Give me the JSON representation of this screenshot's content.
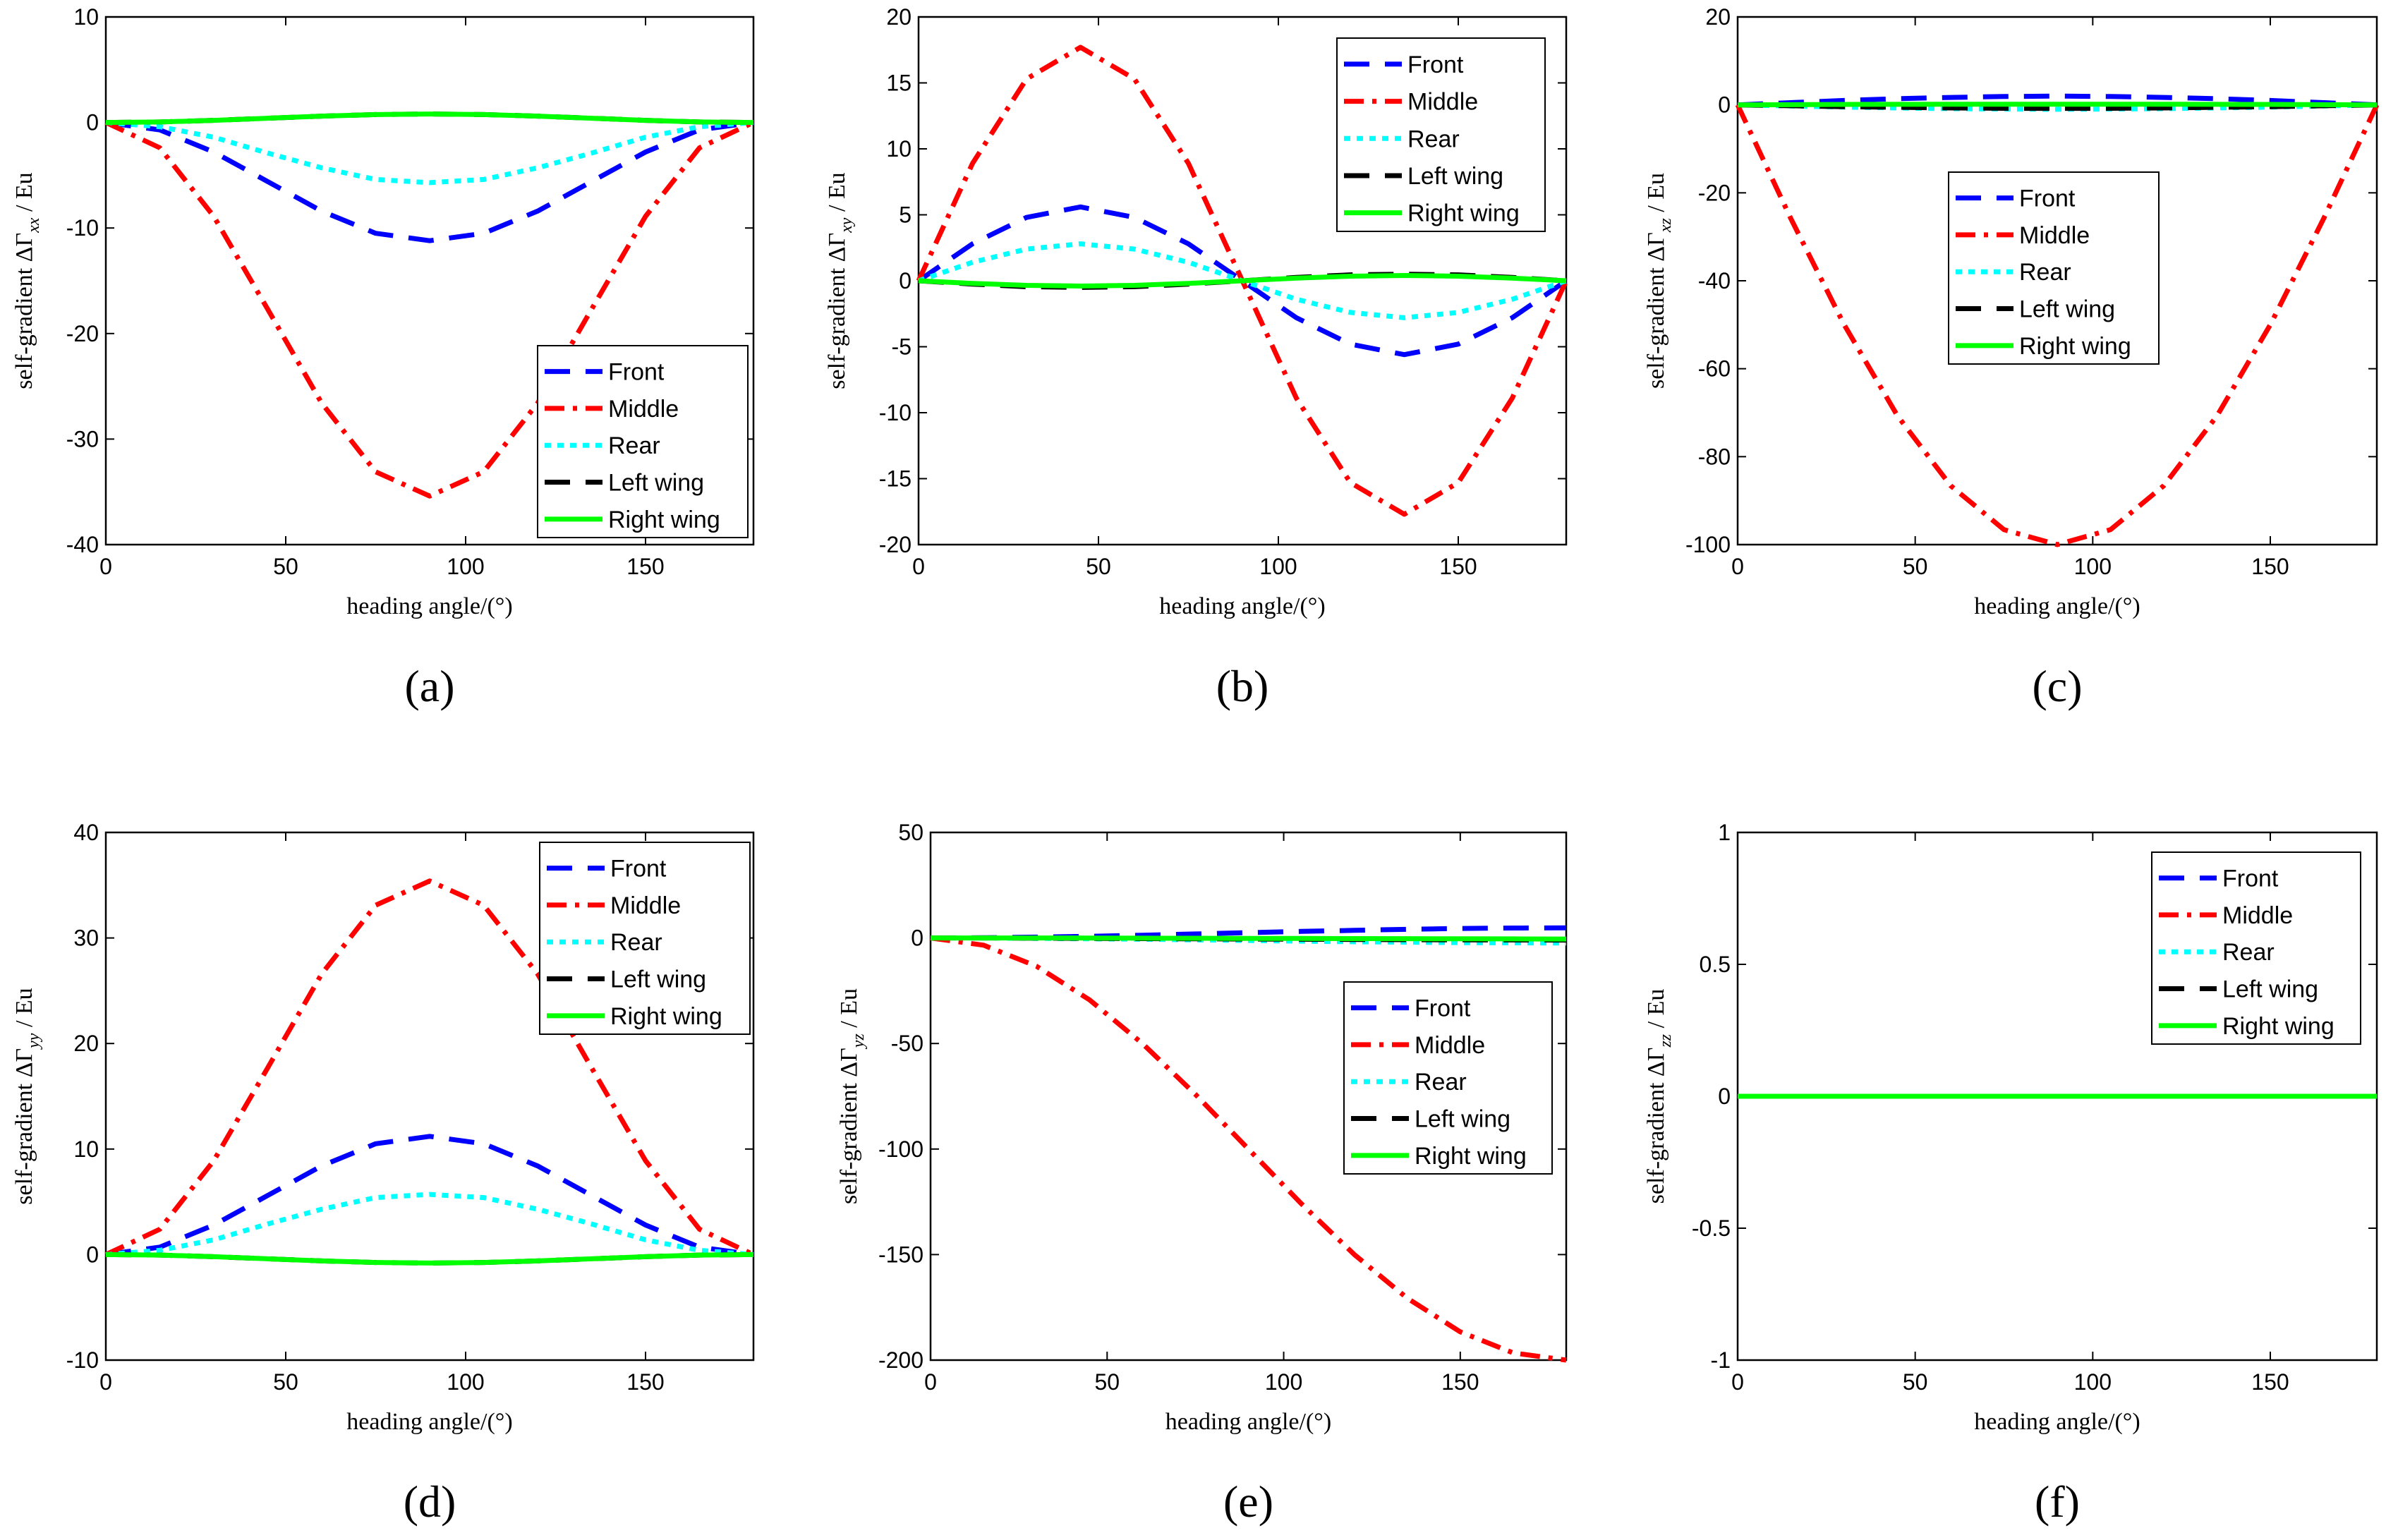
{
  "legend_entries": [
    "Front",
    "Middle",
    "Rear",
    "Left wing",
    "Right wing"
  ],
  "series_styles": {
    "Front": {
      "color": "#0000FF",
      "dash": "dash"
    },
    "Middle": {
      "color": "#FF0000",
      "dash": "dashdot"
    },
    "Rear": {
      "color": "#00FFFF",
      "dash": "dot"
    },
    "Left wing": {
      "color": "#000000",
      "dash": "dash"
    },
    "Right wing": {
      "color": "#00FF00",
      "dash": "solid"
    }
  },
  "chart_data": [
    {
      "panel_label": "(a)",
      "type": "line",
      "title": "",
      "xlabel": "heading angle/(°)",
      "ylabel_prefix": "self-gradient  ΔΓ",
      "ylabel_subscript": "xx",
      "ylabel_suffix": " / Eu",
      "xlim": [
        0,
        180
      ],
      "ylim": [
        -40,
        10
      ],
      "xticks": [
        0,
        50,
        100,
        150
      ],
      "yticks": [
        -40,
        -30,
        -20,
        -10,
        0,
        10
      ],
      "legend_position": "bottom-right",
      "series": [
        {
          "name": "Front",
          "x": [
            0,
            15,
            30,
            45,
            60,
            75,
            90,
            105,
            120,
            135,
            150,
            165,
            180
          ],
          "values": [
            0,
            -0.7,
            -2.8,
            -5.6,
            -8.4,
            -10.5,
            -11.2,
            -10.5,
            -8.4,
            -5.6,
            -2.8,
            -0.7,
            0
          ]
        },
        {
          "name": "Middle",
          "x": [
            0,
            15,
            30,
            45,
            60,
            75,
            90,
            105,
            120,
            135,
            150,
            165,
            180
          ],
          "values": [
            0,
            -2.4,
            -8.9,
            -17.7,
            -26.6,
            -33.1,
            -35.4,
            -33.1,
            -26.6,
            -17.7,
            -8.9,
            -2.4,
            0
          ]
        },
        {
          "name": "Rear",
          "x": [
            0,
            15,
            30,
            45,
            60,
            75,
            90,
            105,
            120,
            135,
            150,
            165,
            180
          ],
          "values": [
            0,
            -0.4,
            -1.4,
            -2.9,
            -4.3,
            -5.4,
            -5.7,
            -5.4,
            -4.3,
            -2.9,
            -1.4,
            -0.4,
            0
          ]
        },
        {
          "name": "Left wing",
          "x": [
            0,
            15,
            30,
            45,
            60,
            75,
            90,
            105,
            120,
            135,
            150,
            165,
            180
          ],
          "values": [
            0,
            0.05,
            0.2,
            0.4,
            0.6,
            0.75,
            0.8,
            0.75,
            0.6,
            0.4,
            0.2,
            0.05,
            0
          ]
        },
        {
          "name": "Right wing",
          "x": [
            0,
            15,
            30,
            45,
            60,
            75,
            90,
            105,
            120,
            135,
            150,
            165,
            180
          ],
          "values": [
            0,
            0.05,
            0.2,
            0.4,
            0.6,
            0.75,
            0.8,
            0.75,
            0.6,
            0.4,
            0.2,
            0.05,
            0
          ]
        }
      ]
    },
    {
      "panel_label": "(b)",
      "type": "line",
      "title": "",
      "xlabel": "heading angle/(°)",
      "ylabel_prefix": "self-gradient  ΔΓ",
      "ylabel_subscript": "xy",
      "ylabel_suffix": " / Eu",
      "xlim": [
        0,
        180
      ],
      "ylim": [
        -20,
        20
      ],
      "xticks": [
        0,
        50,
        100,
        150
      ],
      "yticks": [
        -20,
        -15,
        -10,
        -5,
        0,
        5,
        10,
        15,
        20
      ],
      "legend_position": "top-right",
      "series": [
        {
          "name": "Front",
          "x": [
            0,
            15,
            30,
            45,
            60,
            75,
            90,
            105,
            120,
            135,
            150,
            165,
            180
          ],
          "values": [
            0,
            2.8,
            4.8,
            5.6,
            4.8,
            2.8,
            0,
            -2.8,
            -4.8,
            -5.6,
            -4.8,
            -2.8,
            0
          ]
        },
        {
          "name": "Middle",
          "x": [
            0,
            15,
            30,
            45,
            60,
            75,
            90,
            105,
            120,
            135,
            150,
            165,
            180
          ],
          "values": [
            0,
            8.9,
            15.3,
            17.7,
            15.3,
            8.9,
            0,
            -8.9,
            -15.3,
            -17.7,
            -15.3,
            -8.9,
            0
          ]
        },
        {
          "name": "Rear",
          "x": [
            0,
            15,
            30,
            45,
            60,
            75,
            90,
            105,
            120,
            135,
            150,
            165,
            180
          ],
          "values": [
            0,
            1.4,
            2.4,
            2.8,
            2.4,
            1.4,
            0,
            -1.4,
            -2.4,
            -2.8,
            -2.4,
            -1.4,
            0
          ]
        },
        {
          "name": "Left wing",
          "x": [
            0,
            15,
            30,
            45,
            60,
            75,
            90,
            105,
            120,
            135,
            150,
            165,
            180
          ],
          "values": [
            0,
            -0.25,
            -0.45,
            -0.5,
            -0.45,
            -0.25,
            0,
            0.25,
            0.45,
            0.5,
            0.45,
            0.25,
            0
          ]
        },
        {
          "name": "Right wing",
          "x": [
            0,
            15,
            30,
            45,
            60,
            75,
            90,
            105,
            120,
            135,
            150,
            165,
            180
          ],
          "values": [
            0,
            -0.2,
            -0.35,
            -0.4,
            -0.35,
            -0.2,
            0,
            0.2,
            0.35,
            0.4,
            0.35,
            0.2,
            0
          ]
        }
      ]
    },
    {
      "panel_label": "(c)",
      "type": "line",
      "title": "",
      "xlabel": "heading angle/(°)",
      "ylabel_prefix": "self-gradient  ΔΓ",
      "ylabel_subscript": "xz",
      "ylabel_suffix": " / Eu",
      "xlim": [
        0,
        180
      ],
      "ylim": [
        -100,
        20
      ],
      "xticks": [
        0,
        50,
        100,
        150
      ],
      "yticks": [
        -100,
        -80,
        -60,
        -40,
        -20,
        0,
        20
      ],
      "legend_position": "top-center",
      "series": [
        {
          "name": "Front",
          "x": [
            0,
            15,
            30,
            45,
            60,
            75,
            90,
            105,
            120,
            135,
            150,
            165,
            180
          ],
          "values": [
            0,
            0.5,
            1.0,
            1.4,
            1.7,
            1.9,
            2.0,
            1.9,
            1.7,
            1.4,
            1.0,
            0.5,
            0
          ]
        },
        {
          "name": "Middle",
          "x": [
            0,
            15,
            30,
            45,
            60,
            75,
            90,
            105,
            120,
            135,
            150,
            165,
            180
          ],
          "values": [
            0,
            -25.9,
            -50.0,
            -70.7,
            -86.6,
            -96.6,
            -100,
            -96.6,
            -86.6,
            -70.7,
            -50.0,
            -25.9,
            0
          ]
        },
        {
          "name": "Rear",
          "x": [
            0,
            15,
            30,
            45,
            60,
            75,
            90,
            105,
            120,
            135,
            150,
            165,
            180
          ],
          "values": [
            0,
            -0.25,
            -0.5,
            -0.7,
            -0.85,
            -0.95,
            -1.0,
            -0.95,
            -0.85,
            -0.7,
            -0.5,
            -0.25,
            0
          ]
        },
        {
          "name": "Left wing",
          "x": [
            0,
            15,
            30,
            45,
            60,
            75,
            90,
            105,
            120,
            135,
            150,
            165,
            180
          ],
          "values": [
            0,
            -0.2,
            -0.4,
            -0.55,
            -0.7,
            -0.78,
            -0.8,
            -0.78,
            -0.7,
            -0.55,
            -0.4,
            -0.2,
            0
          ]
        },
        {
          "name": "Right wing",
          "x": [
            0,
            15,
            30,
            45,
            60,
            75,
            90,
            105,
            120,
            135,
            150,
            165,
            180
          ],
          "values": [
            0,
            0.05,
            0.1,
            0.12,
            0.14,
            0.15,
            0.15,
            0.15,
            0.14,
            0.12,
            0.1,
            0.05,
            0
          ]
        }
      ]
    },
    {
      "panel_label": "(d)",
      "type": "line",
      "title": "",
      "xlabel": "heading angle/(°)",
      "ylabel_prefix": "self-gradient  ΔΓ",
      "ylabel_subscript": "yy",
      "ylabel_suffix": " / Eu",
      "xlim": [
        0,
        180
      ],
      "ylim": [
        -10,
        40
      ],
      "xticks": [
        0,
        50,
        100,
        150
      ],
      "yticks": [
        -10,
        0,
        10,
        20,
        30,
        40
      ],
      "legend_position": "top-right",
      "series": [
        {
          "name": "Front",
          "x": [
            0,
            15,
            30,
            45,
            60,
            75,
            90,
            105,
            120,
            135,
            150,
            165,
            180
          ],
          "values": [
            0,
            0.7,
            2.8,
            5.6,
            8.4,
            10.5,
            11.2,
            10.5,
            8.4,
            5.6,
            2.8,
            0.7,
            0
          ]
        },
        {
          "name": "Middle",
          "x": [
            0,
            15,
            30,
            45,
            60,
            75,
            90,
            105,
            120,
            135,
            150,
            165,
            180
          ],
          "values": [
            0,
            2.4,
            8.9,
            17.7,
            26.6,
            33.1,
            35.4,
            33.1,
            26.6,
            17.7,
            8.9,
            2.4,
            0
          ]
        },
        {
          "name": "Rear",
          "x": [
            0,
            15,
            30,
            45,
            60,
            75,
            90,
            105,
            120,
            135,
            150,
            165,
            180
          ],
          "values": [
            0,
            0.4,
            1.4,
            2.9,
            4.3,
            5.4,
            5.7,
            5.4,
            4.3,
            2.9,
            1.4,
            0.4,
            0
          ]
        },
        {
          "name": "Left wing",
          "x": [
            0,
            15,
            30,
            45,
            60,
            75,
            90,
            105,
            120,
            135,
            150,
            165,
            180
          ],
          "values": [
            0,
            -0.05,
            -0.2,
            -0.4,
            -0.6,
            -0.75,
            -0.8,
            -0.75,
            -0.6,
            -0.4,
            -0.2,
            -0.05,
            0
          ]
        },
        {
          "name": "Right wing",
          "x": [
            0,
            15,
            30,
            45,
            60,
            75,
            90,
            105,
            120,
            135,
            150,
            165,
            180
          ],
          "values": [
            0,
            -0.05,
            -0.2,
            -0.4,
            -0.6,
            -0.75,
            -0.8,
            -0.75,
            -0.6,
            -0.4,
            -0.2,
            -0.05,
            0
          ]
        }
      ]
    },
    {
      "panel_label": "(e)",
      "type": "line",
      "title": "",
      "xlabel": "heading angle/(°)",
      "ylabel_prefix": "self-gradient  ΔΓ",
      "ylabel_subscript": "yz",
      "ylabel_suffix": " / Eu",
      "xlim": [
        0,
        180
      ],
      "ylim": [
        -200,
        50
      ],
      "xticks": [
        0,
        50,
        100,
        150
      ],
      "yticks": [
        -200,
        -150,
        -100,
        -50,
        0,
        50
      ],
      "legend_position": "center-right",
      "series": [
        {
          "name": "Front",
          "x": [
            0,
            15,
            30,
            45,
            60,
            75,
            90,
            105,
            120,
            135,
            150,
            165,
            180
          ],
          "values": [
            0,
            0.1,
            0.4,
            0.8,
            1.3,
            1.9,
            2.5,
            3.1,
            3.6,
            4.1,
            4.5,
            4.7,
            4.8
          ]
        },
        {
          "name": "Middle",
          "x": [
            0,
            15,
            30,
            45,
            60,
            75,
            90,
            105,
            120,
            135,
            150,
            165,
            180
          ],
          "values": [
            0,
            -3.4,
            -13.4,
            -29.3,
            -50.0,
            -74.1,
            -100,
            -125.9,
            -150.0,
            -170.7,
            -186.6,
            -196.6,
            -200
          ]
        },
        {
          "name": "Rear",
          "x": [
            0,
            15,
            30,
            45,
            60,
            75,
            90,
            105,
            120,
            135,
            150,
            165,
            180
          ],
          "values": [
            0,
            -0.05,
            -0.2,
            -0.4,
            -0.6,
            -0.9,
            -1.2,
            -1.5,
            -1.8,
            -2.0,
            -2.2,
            -2.3,
            -2.4
          ]
        },
        {
          "name": "Left wing",
          "x": [
            0,
            15,
            30,
            45,
            60,
            75,
            90,
            105,
            120,
            135,
            150,
            165,
            180
          ],
          "values": [
            0,
            0,
            -0.1,
            -0.2,
            -0.3,
            -0.4,
            -0.5,
            -0.6,
            -0.7,
            -0.8,
            -0.9,
            -0.95,
            -1.0
          ]
        },
        {
          "name": "Right wing",
          "x": [
            0,
            15,
            30,
            45,
            60,
            75,
            90,
            105,
            120,
            135,
            150,
            165,
            180
          ],
          "values": [
            0,
            0,
            0,
            -0.05,
            -0.1,
            -0.15,
            -0.2,
            -0.25,
            -0.3,
            -0.35,
            -0.4,
            -0.45,
            -0.5
          ]
        }
      ]
    },
    {
      "panel_label": "(f)",
      "type": "line",
      "title": "",
      "xlabel": "heading angle/(°)",
      "ylabel_prefix": "self-gradient  ΔΓ",
      "ylabel_subscript": "zz",
      "ylabel_suffix": " / Eu",
      "xlim": [
        0,
        180
      ],
      "ylim": [
        -1,
        1
      ],
      "xticks": [
        0,
        50,
        100,
        150
      ],
      "yticks": [
        -1,
        -0.5,
        0,
        0.5,
        1
      ],
      "legend_position": "top-right",
      "series": [
        {
          "name": "Front",
          "x": [
            0,
            180
          ],
          "values": [
            0,
            0
          ]
        },
        {
          "name": "Middle",
          "x": [
            0,
            180
          ],
          "values": [
            0,
            0
          ]
        },
        {
          "name": "Rear",
          "x": [
            0,
            180
          ],
          "values": [
            0,
            0
          ]
        },
        {
          "name": "Left wing",
          "x": [
            0,
            180
          ],
          "values": [
            0,
            0
          ]
        },
        {
          "name": "Right wing",
          "x": [
            0,
            180
          ],
          "values": [
            0,
            0
          ]
        }
      ]
    }
  ]
}
